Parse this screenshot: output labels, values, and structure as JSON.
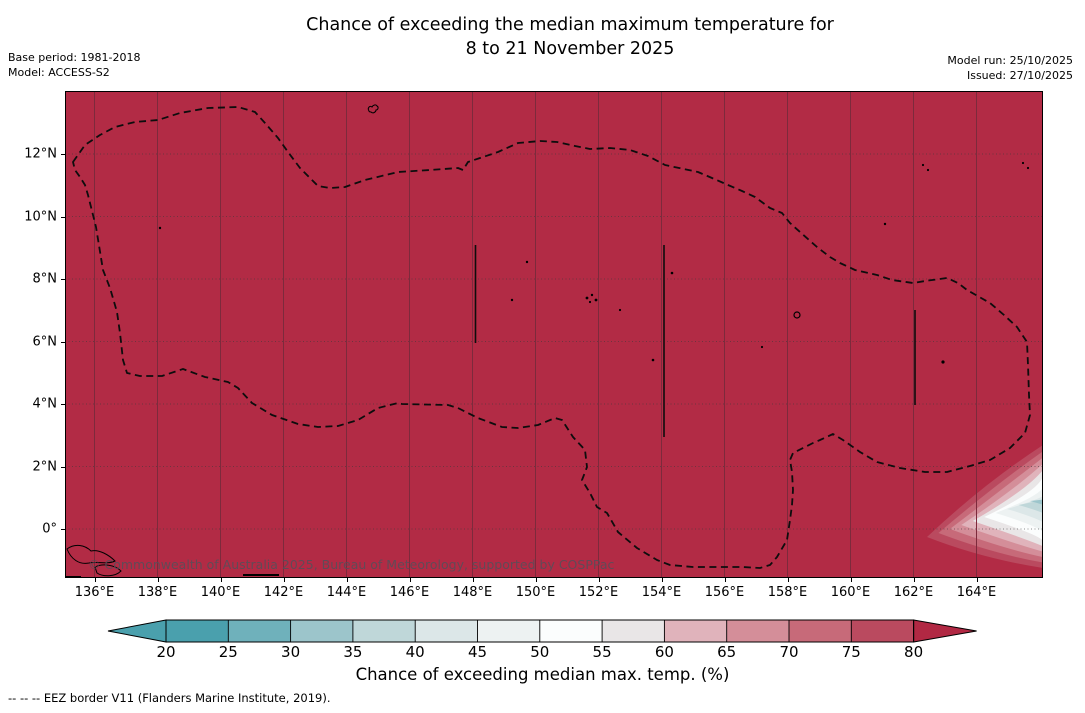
{
  "header": {
    "title_line1": "Chance of exceeding the median maximum temperature for",
    "title_line2": "8 to 21 November 2025",
    "base_period_label": "Base period: 1981-2018",
    "model_label": "Model: ACCESS-S2",
    "model_run_label": "Model run: 25/10/2025",
    "issued_label": "Issued: 27/10/2025"
  },
  "map": {
    "watermark": "© Commonwealth of Australia 2025, Bureau of Meteorology, supported by COSPPac",
    "x_tick_labels": [
      "136°E",
      "138°E",
      "140°E",
      "142°E",
      "144°E",
      "146°E",
      "148°E",
      "150°E",
      "152°E",
      "154°E",
      "156°E",
      "158°E",
      "160°E",
      "162°E",
      "164°E"
    ],
    "y_tick_labels": [
      "12°N",
      "10°N",
      "8°N",
      "6°N",
      "4°N",
      "2°N",
      "0°"
    ],
    "fill_color": "#B22B45",
    "eez_border_style": "dashed black"
  },
  "colorbar": {
    "label": "Chance of exceeding median max. temp. (%)",
    "tick_labels": [
      "20",
      "25",
      "30",
      "35",
      "40",
      "45",
      "50",
      "55",
      "60",
      "65",
      "70",
      "75",
      "80"
    ],
    "segment_colors": [
      "#4AA0AD",
      "#6FB1BB",
      "#9CC5CB",
      "#BFD7D9",
      "#DCE7E8",
      "#EDF2F2",
      "#FBFDFD",
      "#E9E6E7",
      "#E0B3BB",
      "#D48E99",
      "#C76A79",
      "#BA4A5F"
    ],
    "under_arrow_color": "#4AA0AD",
    "over_arrow_color": "#B12843"
  },
  "footer": {
    "eez_note": "--  --  -- EEZ border V11 (Flanders Marine Institute, 2019)."
  },
  "chart_data": {
    "type": "heatmap",
    "title": "Chance of exceeding the median maximum temperature for 8 to 21 November 2025",
    "base_period": "1981-2018",
    "model": "ACCESS-S2",
    "model_run_date": "25/10/2025",
    "issued_date": "27/10/2025",
    "x_axis": {
      "tick_labels": [
        "136°E",
        "138°E",
        "140°E",
        "142°E",
        "144°E",
        "146°E",
        "148°E",
        "150°E",
        "152°E",
        "154°E",
        "156°E",
        "158°E",
        "160°E",
        "162°E",
        "164°E"
      ],
      "unit": "degrees east longitude"
    },
    "y_axis": {
      "tick_labels": [
        "12°N",
        "10°N",
        "8°N",
        "6°N",
        "4°N",
        "2°N",
        "0°"
      ],
      "unit": "degrees north latitude"
    },
    "grid": true,
    "colorbar": {
      "label": "Chance of exceeding median max. temp. (%)",
      "ticks": [
        20,
        25,
        30,
        35,
        40,
        45,
        50,
        55,
        60,
        65,
        70,
        75,
        80
      ],
      "under_range_arrow": "<20",
      "over_range_arrow": ">80",
      "legend_position": "bottom"
    },
    "field_summary": "Chance of exceeding the median maximum temperature is above 80% (solid dark red) across nearly the entire mapped Micronesia EEZ domain; a localized low-probability pocket grading from ~75% down to ~25-30% (teal core) occurs at the southeastern corner near 164-166°E, 0-2°N.",
    "overlays": [
      "EEZ border V11 (black dashed)",
      "island coastlines",
      "latitude/longitude graticule"
    ]
  }
}
